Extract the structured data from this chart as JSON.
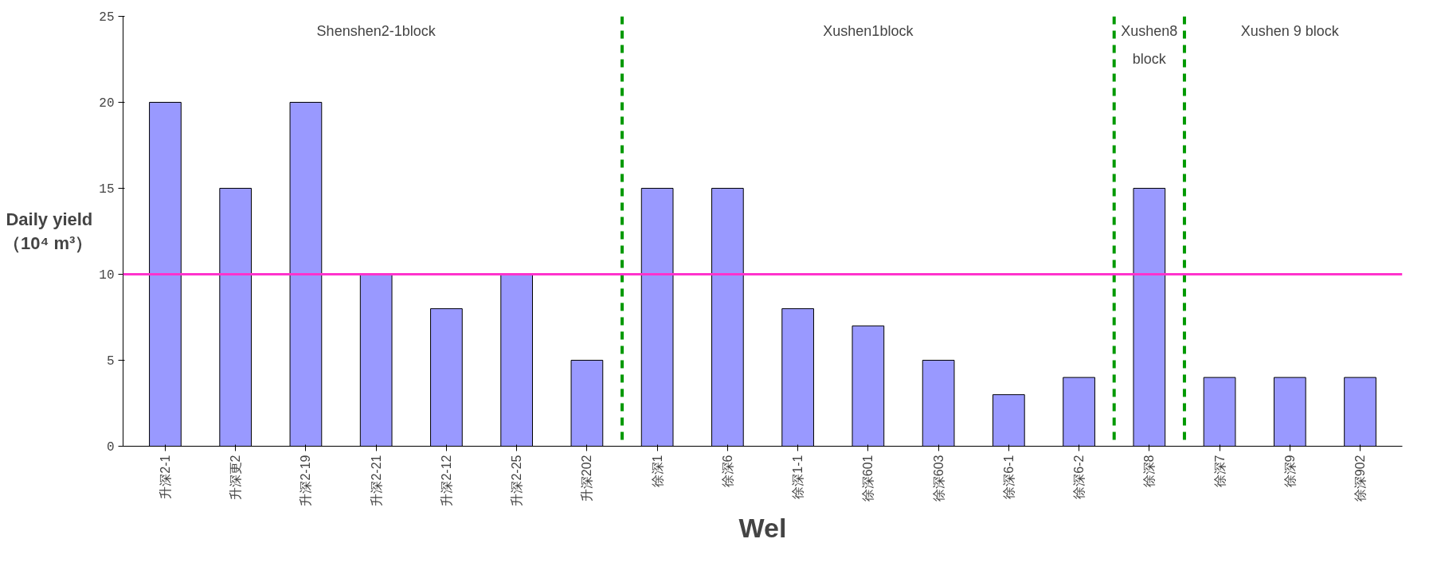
{
  "chart_data": {
    "type": "bar",
    "xlabel": "Wel",
    "ylabel": "Daily yield\n（10⁴ m³）",
    "categories": [
      "升深2-1",
      "升深更2",
      "升深2-19",
      "升深2-21",
      "升深2-12",
      "升深2-25",
      "升深202",
      "徐深1",
      "徐深6",
      "徐深1-1",
      "徐深601",
      "徐深603",
      "徐深6-1",
      "徐深6-2",
      "徐深8",
      "徐深7",
      "徐深9",
      "徐深902"
    ],
    "values": [
      20,
      15,
      20,
      10,
      8,
      10,
      5,
      15,
      15,
      8,
      7,
      5,
      3,
      4,
      15,
      4,
      4,
      4
    ],
    "color": "#9999ff",
    "ylim": [
      0,
      25
    ],
    "yticks": [
      0,
      5,
      10,
      15,
      20,
      25
    ],
    "grid": false,
    "ref_lines": [
      {
        "axis": "y",
        "value": 10,
        "color": "#ff33cc",
        "line_style": "solid"
      }
    ],
    "annotations": [
      "Shenshen2-1block",
      "Xushen1block",
      "Xushen8 block",
      "Xushen 9 block"
    ]
  }
}
